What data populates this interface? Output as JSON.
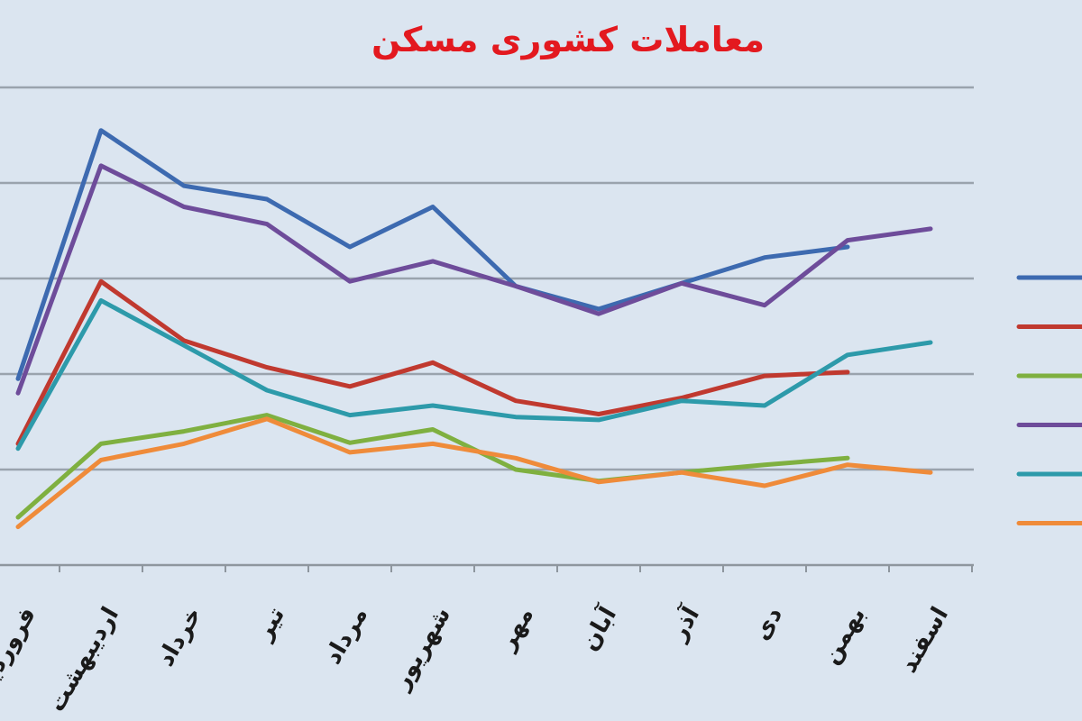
{
  "colors": {
    "background": "#dbe5f0",
    "title": "#e3191f",
    "grid": "#9aa3ad",
    "axis": "#8e969e"
  },
  "chart_data": {
    "type": "line",
    "title": "معاملات کشوری مسکن",
    "xlabel": "",
    "ylabel": "",
    "categories": [
      "فروردین",
      "اردیبهشت",
      "خرداد",
      "تیر",
      "مرداد",
      "شهریور",
      "مهر",
      "آبان",
      "آذر",
      "دی",
      "بهمن",
      "اسفند"
    ],
    "ylim": [
      0,
      5
    ],
    "grid": true,
    "legend_position": "right",
    "series": [
      {
        "color": "#3d6ab0",
        "values": [
          1.95,
          4.55,
          3.97,
          3.83,
          3.33,
          3.75,
          2.92,
          2.68,
          2.95,
          3.22,
          3.33,
          null
        ]
      },
      {
        "color": "#c0392f",
        "values": [
          1.27,
          2.97,
          2.35,
          2.07,
          1.87,
          2.12,
          1.72,
          1.58,
          1.75,
          1.98,
          2.02,
          null
        ]
      },
      {
        "color": "#7fb040",
        "values": [
          0.5,
          1.27,
          1.4,
          1.57,
          1.28,
          1.42,
          1.0,
          0.88,
          0.97,
          1.05,
          1.12,
          null
        ]
      },
      {
        "color": "#6e4c9a",
        "values": [
          1.8,
          4.18,
          3.75,
          3.57,
          2.97,
          3.18,
          2.92,
          2.63,
          2.95,
          2.72,
          3.4,
          3.52
        ]
      },
      {
        "color": "#2d9aaa",
        "values": [
          1.22,
          2.77,
          2.3,
          1.83,
          1.57,
          1.67,
          1.55,
          1.52,
          1.72,
          1.67,
          2.2,
          2.33
        ]
      },
      {
        "color": "#ef8b3a",
        "values": [
          0.4,
          1.1,
          1.27,
          1.53,
          1.18,
          1.27,
          1.12,
          0.87,
          0.97,
          0.83,
          1.05,
          0.97
        ]
      }
    ]
  }
}
